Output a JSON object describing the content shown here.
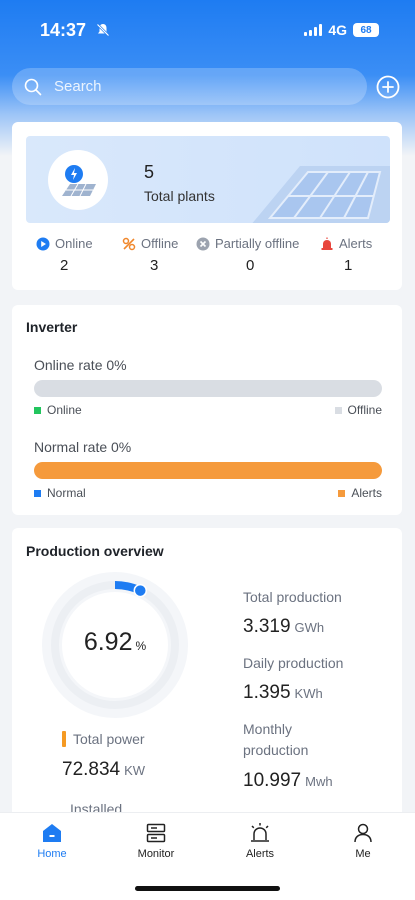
{
  "status_bar": {
    "time": "14:37",
    "network": "4G",
    "battery": "68"
  },
  "search": {
    "placeholder": "Search"
  },
  "plants": {
    "count": "5",
    "label": "Total plants",
    "stats": [
      {
        "label": "Online",
        "value": "2",
        "icon": "online-icon",
        "color": "#1e7cf2"
      },
      {
        "label": "Offline",
        "value": "3",
        "icon": "offline-icon",
        "color": "#f0872b"
      },
      {
        "label": "Partially offline",
        "value": "0",
        "icon": "partially-offline-icon",
        "color": "#9ca3af"
      },
      {
        "label": "Alerts",
        "value": "1",
        "icon": "alert-icon",
        "color": "#e8453c"
      }
    ]
  },
  "inverter": {
    "title": "Inverter",
    "online_rate": {
      "label": "Online rate 0%",
      "percent": 0,
      "legend_left": "Online",
      "legend_right": "Offline",
      "left_color": "#22c55e",
      "right_color": "#d9dde3"
    },
    "normal_rate": {
      "label": "Normal rate 0%",
      "percent": 0,
      "legend_left": "Normal",
      "legend_right": "Alerts",
      "left_color": "#1e7cf2",
      "right_color": "#f59a3c"
    }
  },
  "production": {
    "title": "Production overview",
    "gauge_value": "6.92",
    "gauge_unit": "%",
    "gauge_percent": 6.92,
    "total_power_label": "Total power",
    "total_power_value": "72.834",
    "total_power_unit": "KW",
    "installed_label_partial": "Installed",
    "total_production_label": "Total production",
    "total_production_value": "3.319",
    "total_production_unit": "GWh",
    "daily_production_label": "Daily production",
    "daily_production_value": "1.395",
    "daily_production_unit": "KWh",
    "monthly_production_label_line1": "Monthly",
    "monthly_production_label_line2": "production",
    "monthly_production_value": "10.997",
    "monthly_production_unit": "Mwh"
  },
  "tabs": [
    {
      "label": "Home",
      "icon": "home-icon",
      "active": true
    },
    {
      "label": "Monitor",
      "icon": "monitor-icon",
      "active": false
    },
    {
      "label": "Alerts",
      "icon": "alarm-icon",
      "active": false
    },
    {
      "label": "Me",
      "icon": "user-icon",
      "active": false
    }
  ],
  "colors": {
    "accent": "#1e7cf2",
    "warning": "#f59a23"
  }
}
